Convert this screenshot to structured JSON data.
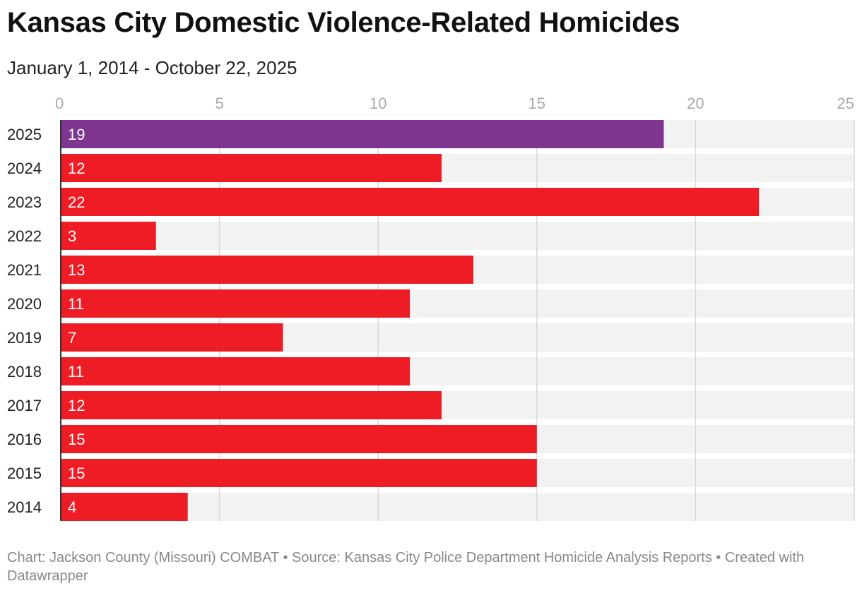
{
  "chart_data": {
    "type": "bar",
    "orientation": "horizontal",
    "title": "Kansas City Domestic Violence-Related Homicides",
    "subtitle": "January 1, 2014 - October 22, 2025",
    "categories": [
      "2025",
      "2024",
      "2023",
      "2022",
      "2021",
      "2020",
      "2019",
      "2018",
      "2017",
      "2016",
      "2015",
      "2014"
    ],
    "values": [
      19,
      12,
      22,
      3,
      13,
      11,
      7,
      11,
      12,
      15,
      15,
      4
    ],
    "xlim": [
      0,
      25
    ],
    "ticks": [
      0,
      5,
      10,
      15,
      20,
      25
    ],
    "highlight_category": "2025",
    "colors": {
      "highlight": "#7f3691",
      "bar": "#ee1c25",
      "track": "#f2f2f2",
      "grid": "#d8d8d8",
      "axis": "#333333",
      "tick_label": "#aaaaaa",
      "value_label": "#ffffff"
    },
    "xlabel": "",
    "ylabel": "",
    "grid": true
  },
  "footer": {
    "text": "Chart: Jackson County (Missouri) COMBAT • Source: Kansas City Police Department Homicide Analysis Reports • Created with Datawrapper"
  }
}
